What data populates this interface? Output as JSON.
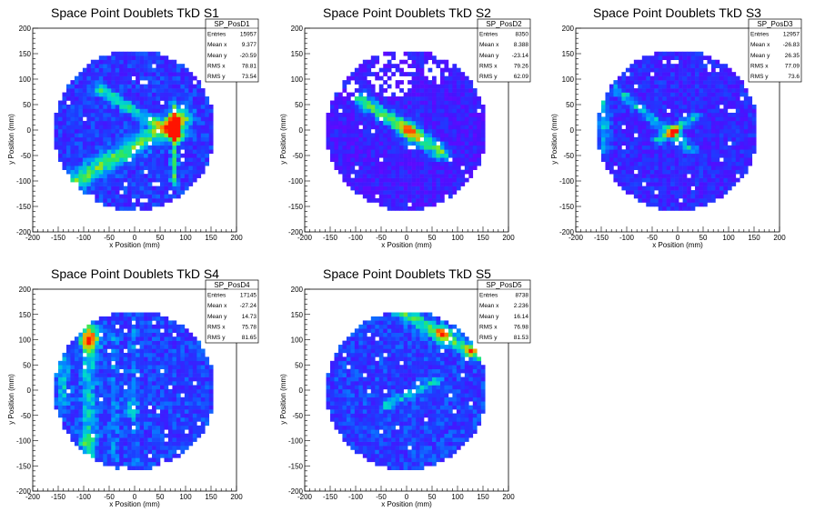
{
  "chart_data": [
    {
      "type": "heatmap",
      "title": "Space Point Doublets TkD S1",
      "xlabel": "x Position (mm)",
      "ylabel": "y Position (mm)",
      "xlim": [
        -200,
        200
      ],
      "ylim": [
        -200,
        200
      ],
      "xticks": [
        -200,
        -150,
        -100,
        -50,
        0,
        50,
        100,
        150,
        200
      ],
      "yticks": [
        -200,
        -150,
        -100,
        -50,
        0,
        50,
        100,
        150,
        200
      ],
      "stats": {
        "name": "SP_PosD1",
        "rows": [
          {
            "label": "Entries",
            "value": "15957"
          },
          {
            "label": "Mean x",
            "value": "9.377"
          },
          {
            "label": "Mean y",
            "value": "-20.59"
          },
          {
            "label": "RMS x",
            "value": "78.81"
          },
          {
            "label": "RMS y",
            "value": "73.54"
          }
        ]
      },
      "density": {
        "base": 0.28,
        "bands": [
          {
            "x1": -70,
            "y1": 80,
            "x2": 90,
            "y2": -15,
            "width": 8,
            "strength": 0.32
          },
          {
            "x1": -110,
            "y1": -95,
            "x2": 95,
            "y2": 25,
            "width": 14,
            "strength": 0.4
          },
          {
            "x1": 78,
            "y1": 50,
            "x2": 78,
            "y2": -100,
            "width": 5,
            "strength": 0.35
          }
        ],
        "hotspots": [
          {
            "x": 78,
            "y": 15,
            "r": 10,
            "strength": 0.55
          },
          {
            "x": 80,
            "y": -5,
            "r": 8,
            "strength": 0.4
          }
        ],
        "gaps": [],
        "seed": 11
      }
    },
    {
      "type": "heatmap",
      "title": "Space Point Doublets TkD S2",
      "xlabel": "x Position (mm)",
      "ylabel": "y Position (mm)",
      "xlim": [
        -200,
        200
      ],
      "ylim": [
        -200,
        200
      ],
      "xticks": [
        -200,
        -150,
        -100,
        -50,
        0,
        50,
        100,
        150,
        200
      ],
      "yticks": [
        -200,
        -150,
        -100,
        -50,
        0,
        50,
        100,
        150,
        200
      ],
      "stats": {
        "name": "SP_PosD2",
        "rows": [
          {
            "label": "Entries",
            "value": "8350"
          },
          {
            "label": "Mean x",
            "value": "8.388"
          },
          {
            "label": "Mean y",
            "value": "-23.14"
          },
          {
            "label": "RMS x",
            "value": "79.26"
          },
          {
            "label": "RMS y",
            "value": "62.09"
          }
        ]
      },
      "density": {
        "base": 0.2,
        "bands": [
          {
            "x1": -90,
            "y1": 60,
            "x2": 70,
            "y2": -45,
            "width": 10,
            "strength": 0.5
          }
        ],
        "hotspots": [
          {
            "x": 5,
            "y": 0,
            "r": 18,
            "strength": 0.3
          }
        ],
        "gaps": [
          {
            "x": -30,
            "y": 110,
            "r": 45
          },
          {
            "x": 60,
            "y": 120,
            "r": 30
          },
          {
            "x": -120,
            "y": 80,
            "r": 25
          }
        ],
        "seed": 23
      }
    },
    {
      "type": "heatmap",
      "title": "Space Point Doublets TkD S3",
      "xlabel": "x Position (mm)",
      "ylabel": "y Position (mm)",
      "xlim": [
        -200,
        200
      ],
      "ylim": [
        -200,
        200
      ],
      "xticks": [
        -200,
        -150,
        -100,
        -50,
        0,
        50,
        100,
        150,
        200
      ],
      "yticks": [
        -200,
        -150,
        -100,
        -50,
        0,
        50,
        100,
        150,
        200
      ],
      "stats": {
        "name": "SP_PosD3",
        "rows": [
          {
            "label": "Entries",
            "value": "12957"
          },
          {
            "label": "Mean x",
            "value": "-26.83"
          },
          {
            "label": "Mean y",
            "value": "26.35"
          },
          {
            "label": "RMS x",
            "value": "77.09"
          },
          {
            "label": "RMS y",
            "value": "73.6"
          }
        ]
      },
      "density": {
        "base": 0.24,
        "bands": [
          {
            "x1": -120,
            "y1": 80,
            "x2": 30,
            "y2": -40,
            "width": 7,
            "strength": 0.3
          },
          {
            "x1": -40,
            "y1": -20,
            "x2": 35,
            "y2": 25,
            "width": 6,
            "strength": 0.35
          },
          {
            "x1": -145,
            "y1": 60,
            "x2": -145,
            "y2": -40,
            "width": 8,
            "strength": 0.3
          }
        ],
        "hotspots": [
          {
            "x": -5,
            "y": 0,
            "r": 8,
            "strength": 0.45
          }
        ],
        "gaps": [],
        "seed": 37
      }
    },
    {
      "type": "heatmap",
      "title": "Space Point Doublets TkD S4",
      "xlabel": "x Position (mm)",
      "ylabel": "y Position (mm)",
      "xlim": [
        -200,
        200
      ],
      "ylim": [
        -200,
        200
      ],
      "xticks": [
        -200,
        -150,
        -100,
        -50,
        0,
        50,
        100,
        150,
        200
      ],
      "yticks": [
        -200,
        -150,
        -100,
        -50,
        0,
        50,
        100,
        150,
        200
      ],
      "stats": {
        "name": "SP_PosD4",
        "rows": [
          {
            "label": "Entries",
            "value": "17145"
          },
          {
            "label": "Mean x",
            "value": "-27.24"
          },
          {
            "label": "Mean y",
            "value": "14.73"
          },
          {
            "label": "RMS x",
            "value": "75.78"
          },
          {
            "label": "RMS y",
            "value": "81.65"
          }
        ]
      },
      "density": {
        "base": 0.3,
        "bands": [
          {
            "x1": -90,
            "y1": 140,
            "x2": -90,
            "y2": -130,
            "width": 10,
            "strength": 0.25
          },
          {
            "x1": -140,
            "y1": 80,
            "x2": -140,
            "y2": -20,
            "width": 8,
            "strength": 0.22
          },
          {
            "x1": -40,
            "y1": 120,
            "x2": -40,
            "y2": -140,
            "width": 5,
            "strength": 0.12
          },
          {
            "x1": 0,
            "y1": 140,
            "x2": 0,
            "y2": -140,
            "width": 5,
            "strength": 0.12
          }
        ],
        "hotspots": [
          {
            "x": -88,
            "y": 100,
            "r": 14,
            "strength": 0.5
          },
          {
            "x": -95,
            "y": -100,
            "r": 12,
            "strength": 0.25
          },
          {
            "x": -10,
            "y": -35,
            "r": 12,
            "strength": 0.2
          }
        ],
        "gaps": [],
        "seed": 41
      }
    },
    {
      "type": "heatmap",
      "title": "Space Point Doublets TkD S5",
      "xlabel": "x Position (mm)",
      "ylabel": "y Position (mm)",
      "xlim": [
        -200,
        200
      ],
      "ylim": [
        -200,
        200
      ],
      "xticks": [
        -200,
        -150,
        -100,
        -50,
        0,
        50,
        100,
        150,
        200
      ],
      "yticks": [
        -200,
        -150,
        -100,
        -50,
        0,
        50,
        100,
        150,
        200
      ],
      "stats": {
        "name": "SP_PosD5",
        "rows": [
          {
            "label": "Entries",
            "value": "8738"
          },
          {
            "label": "Mean x",
            "value": "2.236"
          },
          {
            "label": "Mean y",
            "value": "16.14"
          },
          {
            "label": "RMS x",
            "value": "76.98"
          },
          {
            "label": "RMS y",
            "value": "81.53"
          }
        ]
      },
      "density": {
        "base": 0.3,
        "bands": [
          {
            "x1": -20,
            "y1": 160,
            "x2": 140,
            "y2": 70,
            "width": 10,
            "strength": 0.35
          },
          {
            "x1": -40,
            "y1": -30,
            "x2": 60,
            "y2": 20,
            "width": 7,
            "strength": 0.25
          }
        ],
        "hotspots": [
          {
            "x": 70,
            "y": 110,
            "r": 12,
            "strength": 0.35
          },
          {
            "x": 130,
            "y": 80,
            "r": 8,
            "strength": 0.3
          }
        ],
        "gaps": [],
        "seed": 53
      }
    }
  ]
}
